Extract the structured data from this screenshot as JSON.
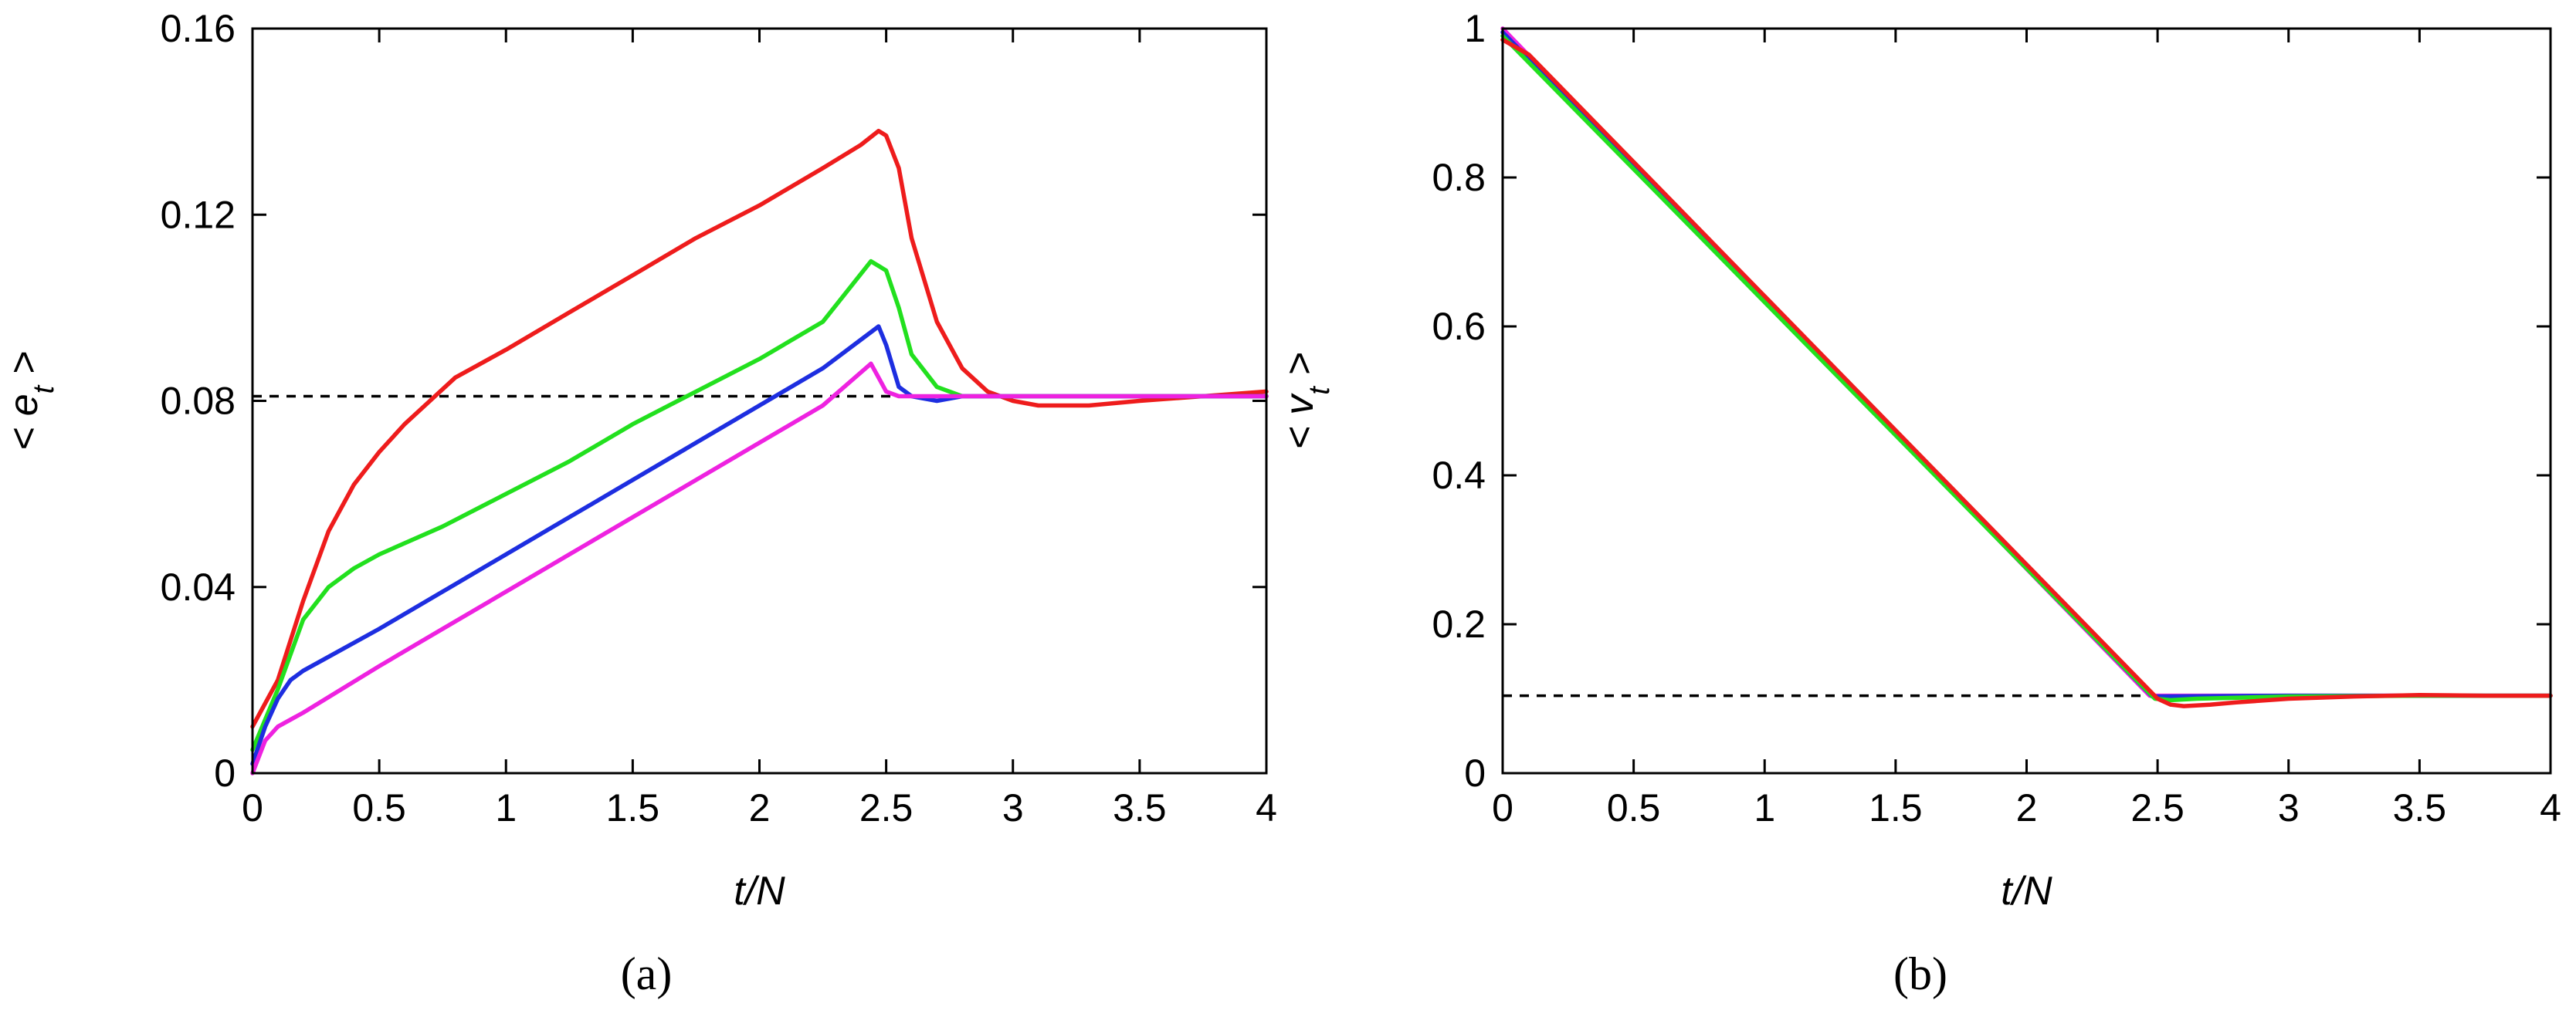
{
  "chart_data": [
    {
      "type": "line",
      "panel_label": "(a)",
      "xlabel": "t/N",
      "ylabel": "< e_t >",
      "ylabel_base": "< e",
      "ylabel_sub": "t",
      "ylabel_end": " >",
      "xlim": [
        0,
        4
      ],
      "ylim": [
        0,
        0.16
      ],
      "xticks": [
        0,
        0.5,
        1,
        1.5,
        2,
        2.5,
        3,
        3.5,
        4
      ],
      "xtick_labels": [
        "0",
        "0.5",
        "1",
        "1.5",
        "2",
        "2.5",
        "3",
        "3.5",
        "4"
      ],
      "yticks": [
        0,
        0.04,
        0.08,
        0.12,
        0.16
      ],
      "ytick_labels": [
        "0",
        "0.04",
        "0.08",
        "0.12",
        "0.16"
      ],
      "reference_line": {
        "y": 0.081,
        "style": "dashed",
        "color": "#000000"
      },
      "series": [
        {
          "name": "red",
          "color": "#ee1c1c",
          "x": [
            0.0,
            0.1,
            0.2,
            0.3,
            0.4,
            0.5,
            0.6,
            0.7,
            0.8,
            0.9,
            1.0,
            1.25,
            1.5,
            1.75,
            2.0,
            2.25,
            2.4,
            2.47,
            2.5,
            2.55,
            2.6,
            2.7,
            2.8,
            2.9,
            3.0,
            3.1,
            3.2,
            3.3,
            3.5,
            3.75,
            4.0
          ],
          "y": [
            0.01,
            0.02,
            0.037,
            0.052,
            0.062,
            0.069,
            0.075,
            0.08,
            0.085,
            0.088,
            0.091,
            0.099,
            0.107,
            0.115,
            0.122,
            0.13,
            0.135,
            0.138,
            0.137,
            0.13,
            0.115,
            0.097,
            0.087,
            0.082,
            0.08,
            0.079,
            0.079,
            0.079,
            0.08,
            0.081,
            0.082
          ]
        },
        {
          "name": "green",
          "color": "#22e01e",
          "x": [
            0.0,
            0.1,
            0.2,
            0.3,
            0.4,
            0.5,
            0.75,
            1.0,
            1.25,
            1.5,
            1.75,
            2.0,
            2.25,
            2.44,
            2.5,
            2.55,
            2.6,
            2.7,
            2.8,
            2.9,
            3.0,
            3.5,
            4.0
          ],
          "y": [
            0.005,
            0.018,
            0.033,
            0.04,
            0.044,
            0.047,
            0.053,
            0.06,
            0.067,
            0.075,
            0.082,
            0.089,
            0.097,
            0.11,
            0.108,
            0.1,
            0.09,
            0.083,
            0.081,
            0.081,
            0.081,
            0.081,
            0.081
          ]
        },
        {
          "name": "blue",
          "color": "#1d2ee0",
          "x": [
            0.0,
            0.05,
            0.1,
            0.15,
            0.2,
            0.3,
            0.5,
            0.75,
            1.0,
            1.25,
            1.5,
            1.75,
            2.0,
            2.25,
            2.47,
            2.5,
            2.55,
            2.6,
            2.7,
            2.8,
            3.0,
            3.5,
            4.0
          ],
          "y": [
            0.002,
            0.01,
            0.016,
            0.02,
            0.022,
            0.025,
            0.031,
            0.039,
            0.047,
            0.055,
            0.063,
            0.071,
            0.079,
            0.087,
            0.096,
            0.092,
            0.083,
            0.081,
            0.08,
            0.081,
            0.081,
            0.081,
            0.081
          ]
        },
        {
          "name": "magenta",
          "color": "#ee22e0",
          "x": [
            0.0,
            0.05,
            0.1,
            0.2,
            0.5,
            0.75,
            1.0,
            1.25,
            1.5,
            1.75,
            2.0,
            2.25,
            2.44,
            2.47,
            2.5,
            2.55,
            3.0,
            3.5,
            4.0
          ],
          "y": [
            0.0,
            0.007,
            0.01,
            0.013,
            0.023,
            0.031,
            0.039,
            0.047,
            0.055,
            0.063,
            0.071,
            0.079,
            0.088,
            0.085,
            0.082,
            0.081,
            0.081,
            0.081,
            0.081
          ]
        }
      ]
    },
    {
      "type": "line",
      "panel_label": "(b)",
      "xlabel": "t/N",
      "ylabel": "< v_t >",
      "ylabel_base": "< v",
      "ylabel_sub": "t",
      "ylabel_end": " >",
      "xlim": [
        0,
        4
      ],
      "ylim": [
        0,
        1
      ],
      "xticks": [
        0,
        0.5,
        1,
        1.5,
        2,
        2.5,
        3,
        3.5,
        4
      ],
      "xtick_labels": [
        "0",
        "0.5",
        "1",
        "1.5",
        "2",
        "2.5",
        "3",
        "3.5",
        "4"
      ],
      "yticks": [
        0,
        0.2,
        0.4,
        0.6,
        0.8,
        1
      ],
      "ytick_labels": [
        "0",
        "0.2",
        "0.4",
        "0.6",
        "0.8",
        "1"
      ],
      "reference_line": {
        "y": 0.104,
        "style": "dashed",
        "color": "#000000"
      },
      "series": [
        {
          "name": "magenta",
          "color": "#ee22e0",
          "x": [
            0.0,
            2.47,
            2.5,
            3.0,
            3.5,
            4.0
          ],
          "y": [
            1.0,
            0.104,
            0.104,
            0.104,
            0.104,
            0.104
          ]
        },
        {
          "name": "blue",
          "color": "#1d2ee0",
          "x": [
            0.0,
            2.48,
            2.52,
            3.0,
            3.5,
            4.0
          ],
          "y": [
            0.995,
            0.103,
            0.103,
            0.104,
            0.104,
            0.104
          ]
        },
        {
          "name": "green",
          "color": "#22e01e",
          "x": [
            0.0,
            2.49,
            2.55,
            2.65,
            3.0,
            3.5,
            4.0
          ],
          "y": [
            0.99,
            0.1,
            0.098,
            0.1,
            0.103,
            0.104,
            0.104
          ]
        },
        {
          "name": "red",
          "color": "#ee1c1c",
          "x": [
            0.0,
            0.1,
            2.5,
            2.55,
            2.6,
            2.7,
            2.8,
            3.0,
            3.25,
            3.5,
            3.75,
            4.0
          ],
          "y": [
            0.985,
            0.965,
            0.1,
            0.092,
            0.09,
            0.092,
            0.095,
            0.1,
            0.103,
            0.105,
            0.104,
            0.104
          ]
        }
      ]
    }
  ]
}
